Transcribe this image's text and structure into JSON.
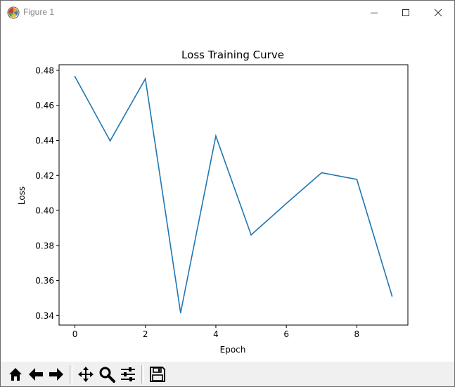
{
  "window": {
    "title": "Figure 1"
  },
  "toolbar": {
    "buttons": [
      {
        "name": "home",
        "icon": "home-icon"
      },
      {
        "name": "back",
        "icon": "arrow-left-icon"
      },
      {
        "name": "forward",
        "icon": "arrow-right-icon"
      },
      {
        "name": "pan",
        "icon": "move-icon"
      },
      {
        "name": "zoom",
        "icon": "magnifier-icon"
      },
      {
        "name": "subplots",
        "icon": "sliders-icon"
      },
      {
        "name": "save",
        "icon": "floppy-disk-icon"
      }
    ]
  },
  "chart_data": {
    "type": "line",
    "title": "Loss Training Curve",
    "xlabel": "Epoch",
    "ylabel": "Loss",
    "xlim": [
      -0.45,
      9.45
    ],
    "ylim": [
      0.3345,
      0.4832
    ],
    "xticks": [
      0,
      2,
      4,
      6,
      8
    ],
    "xtick_labels": [
      "0",
      "2",
      "4",
      "6",
      "8"
    ],
    "yticks": [
      0.34,
      0.36,
      0.38,
      0.4,
      0.42,
      0.44,
      0.46,
      0.48
    ],
    "ytick_labels": [
      "0.34",
      "0.36",
      "0.38",
      "0.40",
      "0.42",
      "0.44",
      "0.46",
      "0.48"
    ],
    "grid": false,
    "series": [
      {
        "color": "#1f77b4",
        "x": [
          0,
          1,
          2,
          3,
          4,
          5,
          6,
          7,
          8,
          9
        ],
        "y": [
          0.4765,
          0.4397,
          0.4752,
          0.3415,
          0.4425,
          0.386,
          0.404,
          0.4215,
          0.4177,
          0.351
        ]
      }
    ]
  }
}
